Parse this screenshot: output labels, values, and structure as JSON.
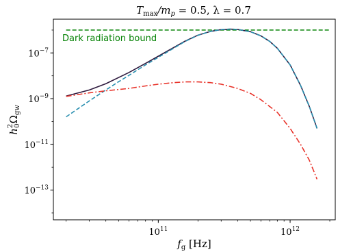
{
  "chart_data": {
    "type": "line",
    "title": "T_max/m_p = 0.5, λ = 0.7",
    "title_parts": {
      "t": "T",
      "t_sub": "max",
      "mp": "/m",
      "mp_sub": "p",
      "rest": " = 0.5, λ = 0.7"
    },
    "xlabel": "f_g [Hz]",
    "xlabel_parts": {
      "f": "f",
      "f_sub": "g",
      "unit": " [Hz]"
    },
    "ylabel": "h_0^2 Ω_gw",
    "ylabel_parts": {
      "h": "h",
      "h_sup": "2",
      "h_sub": "0",
      "omega": "Ω",
      "omega_sub": "gw"
    },
    "xscale": "log",
    "yscale": "log",
    "xlim": [
      16000000000.0,
      2200000000000.0
    ],
    "ylim": [
      5e-15,
      3e-06
    ],
    "grid": false,
    "x_ticks": [
      {
        "value": 100000000000.0,
        "base": "10",
        "exp": "11"
      },
      {
        "value": 1000000000000.0,
        "base": "10",
        "exp": "12"
      }
    ],
    "y_ticks": [
      {
        "value": 1e-13,
        "base": "10",
        "exp": "−13"
      },
      {
        "value": 1e-11,
        "base": "10",
        "exp": "−11"
      },
      {
        "value": 1e-09,
        "base": "10",
        "exp": "−9"
      },
      {
        "value": 1e-07,
        "base": "10",
        "exp": "−7"
      }
    ],
    "annotation": {
      "text": "Dark radiation bound",
      "color": "#008000"
    },
    "bound": {
      "value": 1e-06,
      "x_range": [
        20000000000.0,
        2000000000000.0
      ],
      "color": "#008000",
      "style": "dashed"
    },
    "series": [
      {
        "color": "#2e1a3e",
        "style": "solid",
        "x": [
          20000000000.0,
          30000000000.0,
          40000000000.0,
          60000000000.0,
          80000000000.0,
          120000000000.0,
          160000000000.0,
          200000000000.0,
          250000000000.0,
          300000000000.0,
          350000000000.0,
          400000000000.0,
          500000000000.0,
          600000000000.0,
          700000000000.0,
          800000000000.0,
          1000000000000.0,
          1200000000000.0,
          1400000000000.0,
          1600000000000.0
        ],
        "y": [
          1.3e-09,
          2.4e-09,
          4.5e-09,
          1.4e-08,
          3.5e-08,
          1.3e-07,
          3.3e-07,
          6e-07,
          8.8e-07,
          1.05e-06,
          1.1e-06,
          1.07e-06,
          8.5e-07,
          5.6e-07,
          3.2e-07,
          1.6e-07,
          3e-08,
          3.8e-09,
          4.5e-10,
          5e-11
        ]
      },
      {
        "color": "#2a8fb0",
        "style": "dashed",
        "x": [
          20000000000.0,
          30000000000.0,
          40000000000.0,
          50000000000.0,
          60000000000.0,
          80000000000.0,
          120000000000.0,
          160000000000.0,
          200000000000.0,
          250000000000.0,
          300000000000.0,
          350000000000.0,
          400000000000.0,
          500000000000.0,
          600000000000.0,
          700000000000.0,
          800000000000.0,
          1000000000000.0,
          1200000000000.0,
          1400000000000.0,
          1600000000000.0
        ],
        "y": [
          1.6e-10,
          8e-10,
          2.4e-09,
          5.5e-09,
          1.05e-08,
          3e-08,
          1.2e-07,
          3.2e-07,
          5.9e-07,
          8.8e-07,
          1.05e-06,
          1.1e-06,
          1.07e-06,
          8.5e-07,
          5.6e-07,
          3.2e-07,
          1.6e-07,
          3e-08,
          3.8e-09,
          4.5e-10,
          5e-11
        ]
      },
      {
        "color": "#e8332a",
        "style": "dashdot",
        "x": [
          20000000000.0,
          30000000000.0,
          40000000000.0,
          60000000000.0,
          80000000000.0,
          100000000000.0,
          130000000000.0,
          160000000000.0,
          200000000000.0,
          250000000000.0,
          300000000000.0,
          400000000000.0,
          500000000000.0,
          600000000000.0,
          800000000000.0,
          1000000000000.0,
          1200000000000.0,
          1400000000000.0,
          1600000000000.0
        ],
        "y": [
          1.25e-09,
          1.8e-09,
          2.2e-09,
          2.8e-09,
          3.6e-09,
          4.3e-09,
          5e-09,
          5.4e-09,
          5.4e-09,
          5e-09,
          4.3e-09,
          2.8e-09,
          1.7e-09,
          9e-10,
          2.5e-10,
          5e-11,
          1e-11,
          2e-12,
          3e-13
        ]
      }
    ]
  }
}
